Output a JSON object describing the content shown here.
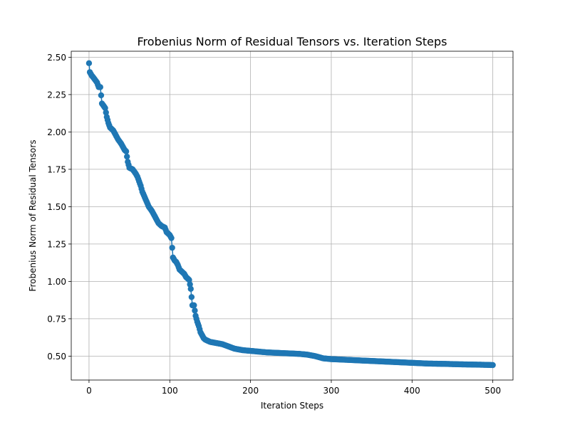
{
  "chart_data": {
    "type": "line",
    "title": "Frobenius Norm of Residual Tensors vs. Iteration Steps",
    "xlabel": "Iteration Steps",
    "ylabel": "Frobenius Norm of Residual Tensors",
    "xlim": [
      -22,
      525
    ],
    "ylim": [
      0.34,
      2.54
    ],
    "xticks": [
      0,
      100,
      200,
      300,
      400,
      500
    ],
    "xtick_labels": [
      "0",
      "100",
      "200",
      "300",
      "400",
      "500"
    ],
    "yticks": [
      0.5,
      0.75,
      1.0,
      1.25,
      1.5,
      1.75,
      2.0,
      2.25,
      2.5
    ],
    "ytick_labels": [
      "0.50",
      "0.75",
      "1.00",
      "1.25",
      "1.50",
      "1.75",
      "2.00",
      "2.25",
      "2.50"
    ],
    "grid": true,
    "marker": "circle",
    "color": "#1f77b4",
    "series": [
      {
        "keypoints_x": [
          0,
          1,
          3,
          6,
          10,
          12,
          14,
          16,
          20,
          22,
          24,
          26,
          28,
          30,
          33,
          36,
          40,
          44,
          46,
          48,
          50,
          54,
          58,
          60,
          62,
          64,
          66,
          70,
          74,
          78,
          82,
          86,
          90,
          94,
          96,
          98,
          100,
          102,
          104,
          106,
          108,
          110,
          112,
          114,
          116,
          118,
          120,
          122,
          124,
          126,
          128,
          130,
          132,
          134,
          136,
          138,
          140,
          142,
          144,
          146,
          148,
          150,
          155,
          160,
          165,
          170,
          175,
          180,
          185,
          190,
          200,
          210,
          220,
          240,
          260,
          270,
          280,
          290,
          300,
          320,
          340,
          360,
          380,
          400,
          420,
          440,
          460,
          480,
          495,
          500
        ],
        "keypoints_y": [
          2.46,
          2.4,
          2.38,
          2.36,
          2.33,
          2.3,
          2.3,
          2.19,
          2.16,
          2.1,
          2.06,
          2.03,
          2.02,
          2.01,
          1.98,
          1.95,
          1.92,
          1.88,
          1.87,
          1.8,
          1.76,
          1.75,
          1.72,
          1.7,
          1.67,
          1.64,
          1.6,
          1.55,
          1.5,
          1.47,
          1.43,
          1.39,
          1.37,
          1.36,
          1.33,
          1.32,
          1.31,
          1.29,
          1.16,
          1.14,
          1.13,
          1.11,
          1.08,
          1.07,
          1.06,
          1.05,
          1.03,
          1.02,
          1.01,
          0.95,
          0.84,
          0.84,
          0.77,
          0.73,
          0.7,
          0.66,
          0.64,
          0.62,
          0.61,
          0.605,
          0.6,
          0.595,
          0.59,
          0.585,
          0.58,
          0.57,
          0.56,
          0.55,
          0.545,
          0.54,
          0.535,
          0.53,
          0.525,
          0.52,
          0.515,
          0.51,
          0.5,
          0.485,
          0.48,
          0.475,
          0.47,
          0.465,
          0.46,
          0.455,
          0.45,
          0.448,
          0.445,
          0.443,
          0.441,
          0.44
        ]
      }
    ]
  }
}
